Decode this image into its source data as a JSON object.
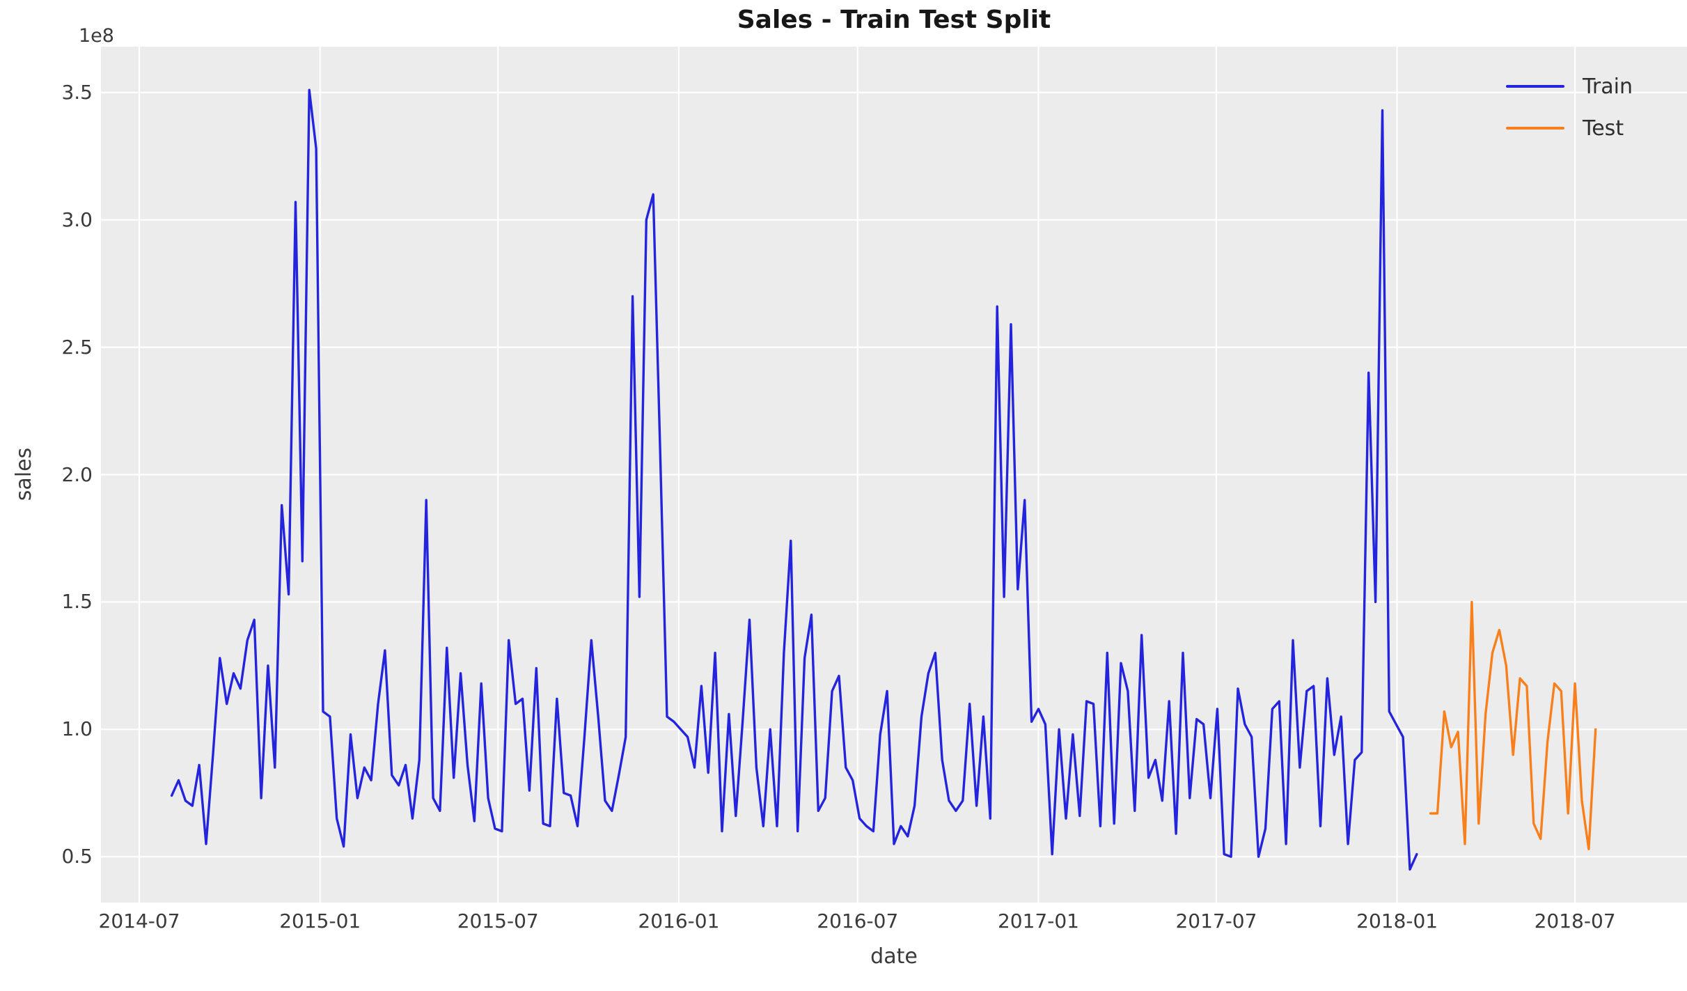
{
  "figure": {
    "title": "Sales - Train Test Split",
    "x_axis_label": "date",
    "y_axis_label": "sales",
    "offset_text": "1e8",
    "background_color": "#ffffff",
    "plot_background_color": "#ececec",
    "grid_color": "#ffffff",
    "text_color": "#3a3a3a",
    "title_color": "#171717"
  },
  "legend": {
    "position": "upper right",
    "items": [
      {
        "label": "Train",
        "color": "#2424dd"
      },
      {
        "label": "Test",
        "color": "#f8801c"
      }
    ]
  },
  "chart_data": {
    "type": "line",
    "title": "Sales - Train Test Split",
    "xlabel": "date",
    "ylabel": "sales",
    "y_unit": "1e8",
    "grid": true,
    "ylim": [
      0.32,
      3.68
    ],
    "xlim": [
      "2014-05-23",
      "2018-10-23"
    ],
    "y_ticks": [
      0.5,
      1.0,
      1.5,
      2.0,
      2.5,
      3.0,
      3.5
    ],
    "y_tick_labels": [
      "0.5",
      "1.0",
      "1.5",
      "2.0",
      "2.5",
      "3.0",
      "3.5"
    ],
    "x_ticks": [
      "2014-07-01",
      "2015-01-01",
      "2015-07-01",
      "2016-01-01",
      "2016-07-01",
      "2017-01-01",
      "2017-07-01",
      "2018-01-01",
      "2018-07-01"
    ],
    "x_tick_labels": [
      "2014-07",
      "2015-01",
      "2015-07",
      "2016-01",
      "2016-07",
      "2017-01",
      "2017-07",
      "2018-01",
      "2018-07"
    ],
    "series": [
      {
        "name": "Train",
        "color": "#2424dd",
        "start": "2014-08-03",
        "freq_days": 7,
        "values": [
          0.74,
          0.8,
          0.72,
          0.7,
          0.86,
          0.55,
          0.9,
          1.28,
          1.1,
          1.22,
          1.16,
          1.35,
          1.43,
          0.73,
          1.25,
          0.85,
          1.88,
          1.53,
          3.07,
          1.66,
          3.51,
          3.28,
          1.07,
          1.05,
          0.65,
          0.54,
          0.98,
          0.73,
          0.85,
          0.8,
          1.1,
          1.31,
          0.82,
          0.78,
          0.86,
          0.65,
          0.88,
          1.9,
          0.73,
          0.68,
          1.32,
          0.81,
          1.22,
          0.86,
          0.64,
          1.18,
          0.73,
          0.61,
          0.6,
          1.35,
          1.1,
          1.12,
          0.76,
          1.24,
          0.63,
          0.62,
          1.12,
          0.75,
          0.74,
          0.62,
          0.97,
          1.35,
          1.05,
          0.72,
          0.68,
          0.82,
          0.97,
          2.7,
          1.52,
          3.0,
          3.1,
          2.1,
          1.05,
          1.03,
          1.0,
          0.97,
          0.85,
          1.17,
          0.83,
          1.3,
          0.6,
          1.06,
          0.66,
          1.03,
          1.43,
          0.85,
          0.62,
          1.0,
          0.62,
          1.3,
          1.74,
          0.6,
          1.28,
          1.45,
          0.68,
          0.73,
          1.15,
          1.21,
          0.85,
          0.8,
          0.65,
          0.62,
          0.6,
          0.98,
          1.15,
          0.55,
          0.62,
          0.58,
          0.7,
          1.05,
          1.22,
          1.3,
          0.88,
          0.72,
          0.68,
          0.72,
          1.1,
          0.7,
          1.05,
          0.65,
          2.66,
          1.52,
          2.59,
          1.55,
          1.9,
          1.03,
          1.08,
          1.02,
          0.51,
          1.0,
          0.65,
          0.98,
          0.66,
          1.11,
          1.1,
          0.62,
          1.3,
          0.63,
          1.26,
          1.15,
          0.68,
          1.37,
          0.81,
          0.88,
          0.72,
          1.11,
          0.59,
          1.3,
          0.73,
          1.04,
          1.02,
          0.73,
          1.08,
          0.51,
          0.5,
          1.16,
          1.02,
          0.97,
          0.5,
          0.61,
          1.08,
          1.11,
          0.55,
          1.35,
          0.85,
          1.15,
          1.17,
          0.62,
          1.2,
          0.9,
          1.05,
          0.55,
          0.88,
          0.91,
          2.4,
          1.5,
          3.43,
          1.07,
          1.02,
          0.97,
          0.45,
          0.51
        ]
      },
      {
        "name": "Test",
        "color": "#f8801c",
        "start": "2018-02-04",
        "freq_days": 7,
        "values": [
          0.67,
          0.67,
          1.07,
          0.93,
          0.99,
          0.55,
          1.5,
          0.63,
          1.06,
          1.3,
          1.39,
          1.25,
          0.9,
          1.2,
          1.17,
          0.63,
          0.57,
          0.95,
          1.18,
          1.15,
          0.67,
          1.18,
          0.72,
          0.53,
          1.0
        ]
      }
    ]
  }
}
